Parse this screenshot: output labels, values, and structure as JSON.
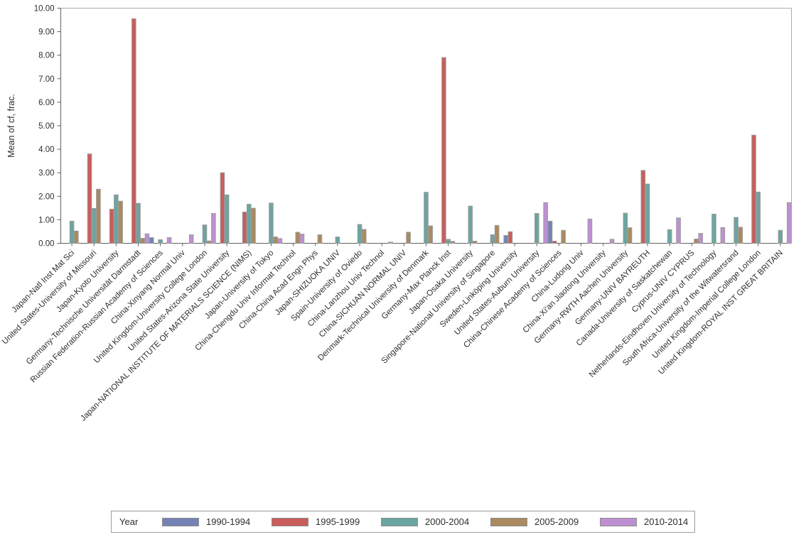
{
  "chart_data": {
    "type": "bar",
    "title": "",
    "xlabel": "",
    "ylabel": "Mean of cf, frac.",
    "ylim": [
      0,
      10
    ],
    "ytick_interval": 1,
    "y_tick_labels": [
      "0.00",
      "1.00",
      "2.00",
      "3.00",
      "4.00",
      "5.00",
      "6.00",
      "7.00",
      "8.00",
      "9.00",
      "10.00"
    ],
    "grid": false,
    "legend_position": "bottom",
    "legend_title": "Year",
    "bar_outline_color": "#9b9b9b",
    "axis_line_color": "#616161",
    "frame_line_color": "#ababab",
    "categories": [
      "Japan-Natl Inst Mat Sci",
      "United States-University of Missouri",
      "Japan-Kyoto University",
      "Germany-Technische Universität Darmstadt",
      "Russian Federation-Russian Academy of Sciences",
      "China-Xinyang Normal Univ",
      "United Kingdom-University College London",
      "United States-Arizona State University",
      "Japan-NATIONAL INSTITUTE OF MATERIALS SCIENCE (NIMS)",
      "Japan-University of Tokyo",
      "China-Chengdu Univ Informat Technol",
      "China-China Acad Engn Phys",
      "Japan-SHIZUOKA UNIV",
      "Spain-University of Oviedo",
      "China-Lanzhou Univ Technol",
      "China-SICHUAN NORMAL UNIV",
      "Denmark-Technical University of Denmark",
      "Germany-Max Planck Inst",
      "Japan-Osaka University",
      "Singapore-National University of Singapore",
      "Sweden-Linköping University",
      "United States-Auburn University",
      "China-Chinese Academy of Sciences",
      "China-Ludong Univ",
      "China-Xi'an Jiaotong University",
      "Germany-RWTH Aachen University",
      "Germany-UNIV BAYREUTH",
      "Canada-University of Saskatchewan",
      "Cyprus-UNIV CYPRUS",
      "Netherlands-Eindhoven University of Technology",
      "South Africa-University of the Witwatersrand",
      "United Kingdom-Imperial College London",
      "United Kingdom-ROYAL INST GREAT BRITAIN"
    ],
    "series": [
      {
        "name": "1990-1994",
        "color": "#7482b5",
        "values": [
          null,
          null,
          null,
          null,
          0.24,
          null,
          null,
          null,
          null,
          null,
          null,
          null,
          null,
          null,
          null,
          null,
          null,
          null,
          null,
          null,
          0.33,
          null,
          0.94,
          null,
          null,
          null,
          null,
          null,
          null,
          null,
          null,
          null,
          null
        ]
      },
      {
        "name": "1995-1999",
        "color": "#c95d5c",
        "values": [
          null,
          3.8,
          1.45,
          9.55,
          null,
          null,
          null,
          3.0,
          1.33,
          null,
          null,
          null,
          null,
          null,
          null,
          null,
          null,
          7.9,
          null,
          null,
          0.49,
          null,
          0.09,
          null,
          null,
          null,
          3.1,
          null,
          null,
          null,
          null,
          4.6,
          null
        ]
      },
      {
        "name": "2000-2004",
        "color": "#6ba5a1",
        "values": [
          0.94,
          1.48,
          2.06,
          1.7,
          0.15,
          null,
          0.78,
          2.06,
          1.66,
          1.71,
          null,
          null,
          0.27,
          0.8,
          null,
          null,
          2.17,
          0.17,
          1.58,
          0.36,
          null,
          1.27,
          null,
          null,
          null,
          1.28,
          2.52,
          0.58,
          null,
          1.24,
          1.1,
          2.18,
          0.55
        ]
      },
      {
        "name": "2005-2009",
        "color": "#aa8a5e",
        "values": [
          0.52,
          2.3,
          1.79,
          0.21,
          null,
          null,
          0.1,
          null,
          1.49,
          0.27,
          0.47,
          0.36,
          null,
          0.59,
          null,
          0.47,
          0.74,
          0.08,
          0.09,
          0.76,
          null,
          null,
          0.55,
          null,
          null,
          0.66,
          null,
          null,
          0.18,
          null,
          0.68,
          null,
          null
        ]
      },
      {
        "name": "2010-2014",
        "color": "#be90d3",
        "values": [
          null,
          null,
          null,
          0.4,
          0.24,
          0.36,
          1.27,
          null,
          null,
          0.2,
          0.39,
          null,
          null,
          null,
          0.05,
          null,
          null,
          null,
          null,
          null,
          null,
          1.73,
          null,
          1.03,
          0.17,
          null,
          null,
          1.08,
          0.42,
          0.67,
          null,
          null,
          1.73
        ]
      }
    ]
  }
}
